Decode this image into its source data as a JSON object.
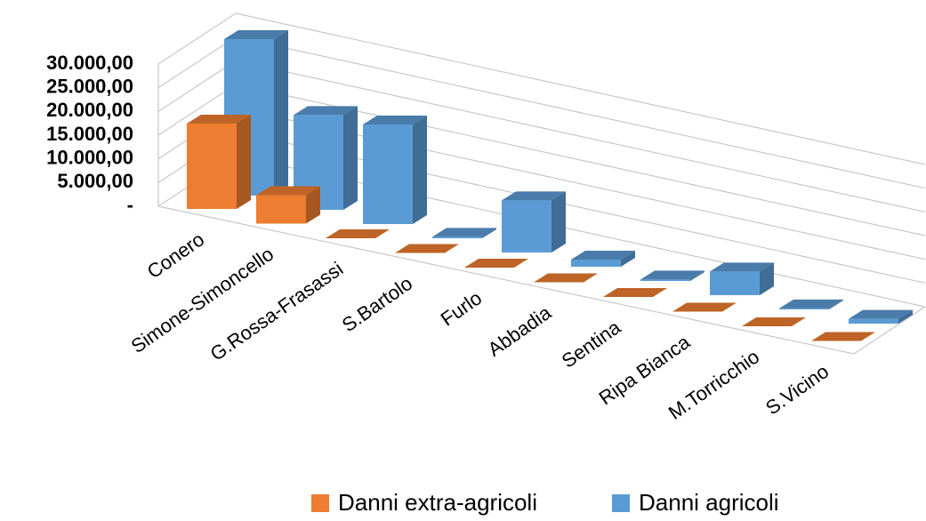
{
  "chart_data": {
    "type": "bar3d",
    "categories": [
      "Conero",
      "Simone-Simoncello",
      "G.Rossa-Frasassi",
      "S.Bartolo",
      "Furlo",
      "Abbadia",
      "Sentina",
      "Ripa Bianca",
      "M.Torricchio",
      "S.Vicino"
    ],
    "series": [
      {
        "name": "Danni extra-agricoli",
        "color": "#ED7D31",
        "values": [
          18000,
          6000,
          0,
          0,
          0,
          0,
          0,
          0,
          0,
          0
        ]
      },
      {
        "name": "Danni agricoli",
        "color": "#5B9BD5",
        "values": [
          33000,
          20000,
          21000,
          300,
          11000,
          1500,
          300,
          5000,
          200,
          1000
        ]
      }
    ],
    "ylim": [
      0,
      30000
    ],
    "yticks": [
      {
        "value": 0,
        "label": "-"
      },
      {
        "value": 5000,
        "label": "5.000,00"
      },
      {
        "value": 10000,
        "label": "10.000,00"
      },
      {
        "value": 15000,
        "label": "15.000,00"
      },
      {
        "value": 20000,
        "label": "20.000,00"
      },
      {
        "value": 25000,
        "label": "25.000,00"
      },
      {
        "value": 30000,
        "label": "30.000,00"
      }
    ],
    "grid": true,
    "legend": "bottom"
  }
}
